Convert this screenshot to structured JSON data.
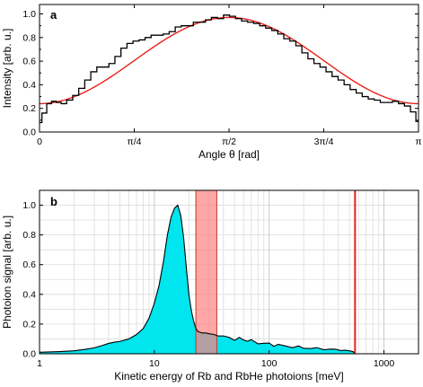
{
  "chart_data": [
    {
      "type": "line",
      "panel_label": "a",
      "xlabel": "Angle θ [rad]",
      "ylabel": "Intensity [arb. u.]",
      "xlim": [
        0,
        3.1416
      ],
      "ylim": [
        0,
        1.08
      ],
      "xticks": [
        {
          "value": 0,
          "label": "0"
        },
        {
          "value": 0.7854,
          "label": "π/4"
        },
        {
          "value": 1.5708,
          "label": "π/2"
        },
        {
          "value": 2.3562,
          "label": "3π/4"
        },
        {
          "value": 3.1416,
          "label": "π"
        }
      ],
      "yticks": [
        {
          "value": 0,
          "label": "0.0"
        },
        {
          "value": 0.2,
          "label": "0.2"
        },
        {
          "value": 0.4,
          "label": "0.4"
        },
        {
          "value": 0.6,
          "label": "0.6"
        },
        {
          "value": 0.8,
          "label": "0.8"
        },
        {
          "value": 1.0,
          "label": "1.0"
        }
      ],
      "grid": false,
      "series": [
        {
          "color": "#000000",
          "x": [
            0.0,
            0.04,
            0.08,
            0.12,
            0.16,
            0.2,
            0.25,
            0.3,
            0.35,
            0.4,
            0.45,
            0.5,
            0.55,
            0.6,
            0.65,
            0.7,
            0.75,
            0.8,
            0.85,
            0.9,
            0.95,
            1.0,
            1.05,
            1.1,
            1.15,
            1.2,
            1.25,
            1.3,
            1.35,
            1.4,
            1.45,
            1.5,
            1.55,
            1.6,
            1.65,
            1.7,
            1.75,
            1.8,
            1.85,
            1.9,
            1.95,
            2.0,
            2.05,
            2.1,
            2.15,
            2.2,
            2.25,
            2.3,
            2.35,
            2.4,
            2.45,
            2.5,
            2.55,
            2.6,
            2.65,
            2.7,
            2.75,
            2.8,
            2.85,
            2.9,
            2.95,
            3.0,
            3.05,
            3.1,
            3.14
          ],
          "y": [
            0.08,
            0.16,
            0.24,
            0.26,
            0.25,
            0.24,
            0.27,
            0.31,
            0.37,
            0.44,
            0.51,
            0.55,
            0.55,
            0.58,
            0.64,
            0.71,
            0.75,
            0.77,
            0.78,
            0.8,
            0.82,
            0.82,
            0.83,
            0.85,
            0.89,
            0.9,
            0.9,
            0.93,
            0.93,
            0.95,
            0.97,
            0.96,
            0.99,
            0.98,
            0.96,
            0.94,
            0.93,
            0.92,
            0.9,
            0.88,
            0.86,
            0.83,
            0.79,
            0.77,
            0.73,
            0.67,
            0.62,
            0.58,
            0.55,
            0.51,
            0.47,
            0.44,
            0.4,
            0.36,
            0.33,
            0.3,
            0.28,
            0.27,
            0.25,
            0.25,
            0.26,
            0.24,
            0.22,
            0.17,
            0.09
          ]
        },
        {
          "color": "#e8211b",
          "function": "0.24 + 0.73*sin(x)^2",
          "note_a": 0.24,
          "note_b": 0.73
        }
      ]
    },
    {
      "type": "area",
      "panel_label": "b",
      "xlabel": "Kinetic energy of Rb and RbHe photoions [meV]",
      "ylabel": "Photoion signal [arb. u.]",
      "xscale": "log",
      "xlim": [
        1,
        2000
      ],
      "ylim": [
        0,
        1.1
      ],
      "xticks": [
        {
          "value": 1,
          "label": "1"
        },
        {
          "value": 10,
          "label": "10"
        },
        {
          "value": 100,
          "label": "100"
        },
        {
          "value": 1000,
          "label": "1000"
        }
      ],
      "yticks": [
        {
          "value": 0,
          "label": "0.0"
        },
        {
          "value": 0.2,
          "label": "0.2"
        },
        {
          "value": 0.4,
          "label": "0.4"
        },
        {
          "value": 0.6,
          "label": "0.6"
        },
        {
          "value": 0.8,
          "label": "0.8"
        },
        {
          "value": 1.0,
          "label": "1.0"
        }
      ],
      "grid": true,
      "fill_color": "#00e5ee",
      "shaded_band": {
        "x": [
          23,
          35
        ],
        "color": "#ff8080"
      },
      "vertical_line": {
        "x": 560,
        "color": "#e8211b"
      },
      "x": [
        1.0,
        1.5,
        2.0,
        2.5,
        3.0,
        3.5,
        4.0,
        4.5,
        5.0,
        6.0,
        7.0,
        8.0,
        9.0,
        10.0,
        11.0,
        12.0,
        13.0,
        14.0,
        15.0,
        16.0,
        17.0,
        18.0,
        19.0,
        20.0,
        21.0,
        22.0,
        23.0,
        24.0,
        26.0,
        28.0,
        30.0,
        33.0,
        36.0,
        40.0,
        45.0,
        50.0,
        55.0,
        60.0,
        65.0,
        70.0,
        80.0,
        90.0,
        100.0,
        110.0,
        120.0,
        140.0,
        160.0,
        180.0,
        200.0,
        230.0,
        260.0,
        300.0,
        340.0,
        380.0,
        420.0,
        460.0,
        500.0,
        540.0,
        555.0
      ],
      "y": [
        0.01,
        0.015,
        0.02,
        0.03,
        0.04,
        0.055,
        0.07,
        0.078,
        0.083,
        0.1,
        0.13,
        0.17,
        0.24,
        0.34,
        0.46,
        0.62,
        0.8,
        0.92,
        0.98,
        1.0,
        0.93,
        0.78,
        0.58,
        0.4,
        0.29,
        0.22,
        0.17,
        0.15,
        0.14,
        0.14,
        0.135,
        0.13,
        0.12,
        0.12,
        0.11,
        0.1,
        0.1,
        0.095,
        0.09,
        0.085,
        0.075,
        0.07,
        0.065,
        0.06,
        0.058,
        0.05,
        0.048,
        0.045,
        0.04,
        0.038,
        0.035,
        0.032,
        0.03,
        0.028,
        0.025,
        0.022,
        0.02,
        0.015,
        0.0
      ]
    }
  ]
}
